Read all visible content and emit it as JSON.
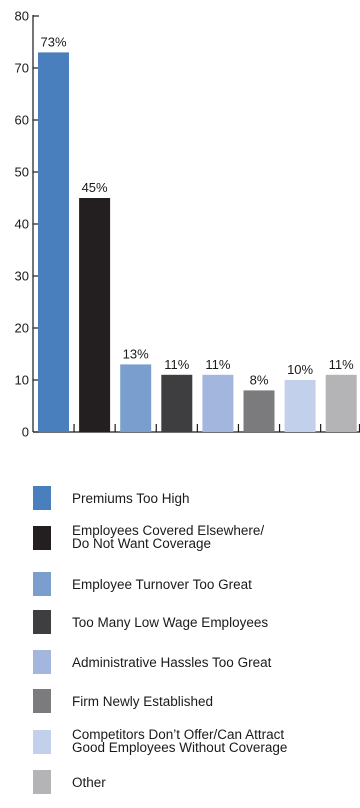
{
  "chart_data": {
    "type": "bar",
    "categories": [
      "Premiums Too High",
      "Employees Covered Elsewhere/\nDo Not Want Coverage",
      "Employee Turnover Too Great",
      "Too Many Low Wage Employees",
      "Administrative Hassles Too Great",
      "Firm Newly Established",
      "Competitors Don’t Offer/Can Attract\nGood Employees Without Coverage",
      "Other"
    ],
    "values": [
      73,
      45,
      13,
      11,
      11,
      8,
      10,
      11
    ],
    "data_labels": [
      "73%",
      "45%",
      "13%",
      "11%",
      "11%",
      "8%",
      "10%",
      "11%"
    ],
    "colors": [
      "#4a7fbd",
      "#231f20",
      "#7a9fcf",
      "#3e3e40",
      "#a3b7de",
      "#7b7b7d",
      "#c3d0ec",
      "#b4b4b6"
    ],
    "ylim": [
      0,
      80
    ],
    "yticks": [
      "0",
      "10",
      "20",
      "30",
      "40",
      "50",
      "60",
      "70",
      "80"
    ],
    "grid": false,
    "legend_position": "bottom"
  }
}
